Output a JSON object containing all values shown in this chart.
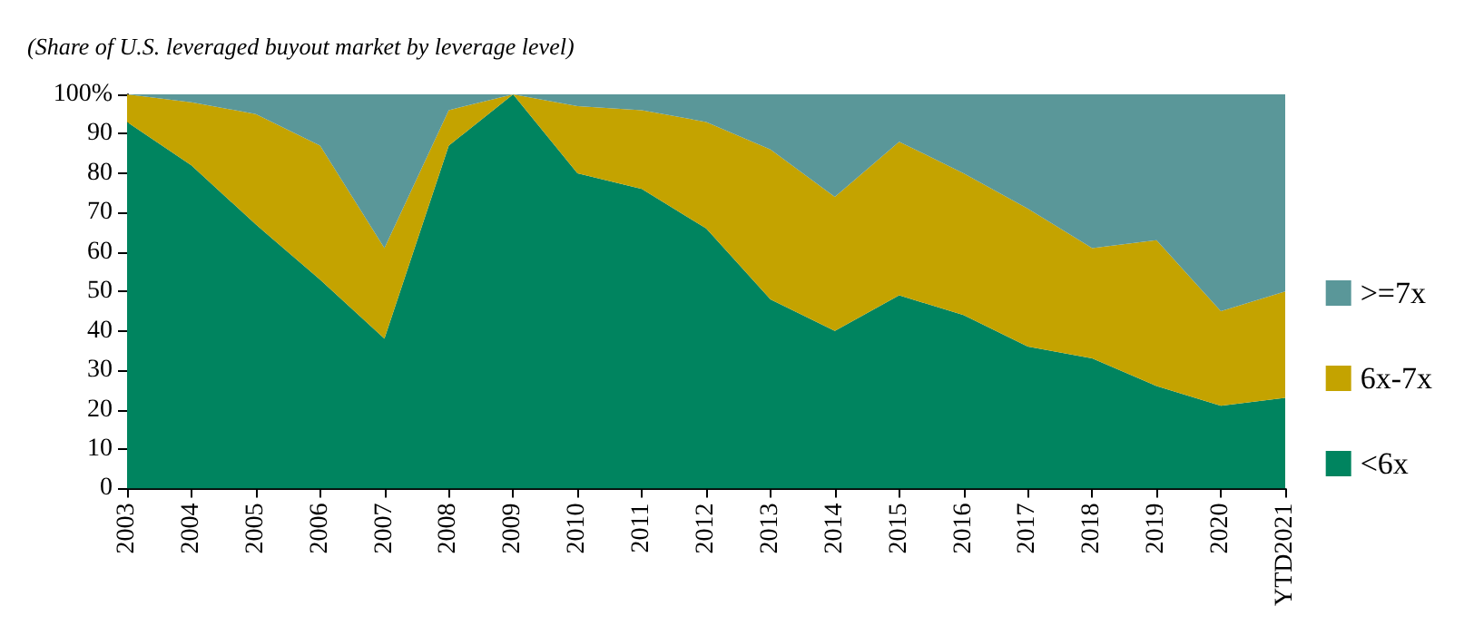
{
  "chart_data": {
    "type": "area",
    "stacked": true,
    "title": "(Share of U.S. leveraged buyout market by leverage level)",
    "categories": [
      "2003",
      "2004",
      "2005",
      "2006",
      "2007",
      "2008",
      "2009",
      "2010",
      "2011",
      "2012",
      "2013",
      "2014",
      "2015",
      "2016",
      "2017",
      "2018",
      "2019",
      "2020",
      "YTD2021"
    ],
    "series": [
      {
        "name": "<6x",
        "color": "#00845f",
        "values": [
          93,
          82,
          67,
          53,
          38,
          87,
          100,
          80,
          76,
          66,
          48,
          40,
          49,
          44,
          36,
          33,
          26,
          21,
          23
        ]
      },
      {
        "name": "6x-7x",
        "color": "#c4a300",
        "values": [
          7,
          16,
          28,
          34,
          23,
          9,
          0,
          17,
          20,
          27,
          38,
          34,
          39,
          36,
          35,
          28,
          37,
          24,
          27
        ]
      },
      {
        "name": ">=7x",
        "color": "#5a9799",
        "values": [
          0,
          2,
          5,
          13,
          39,
          4,
          0,
          3,
          4,
          7,
          14,
          26,
          12,
          20,
          29,
          39,
          37,
          55,
          50
        ]
      }
    ],
    "ylim": [
      0,
      100
    ],
    "yticks": [
      0,
      10,
      20,
      30,
      40,
      50,
      60,
      70,
      80,
      90,
      {
        "value": 100,
        "label": "100%"
      }
    ],
    "grid": false,
    "legend": "right"
  }
}
